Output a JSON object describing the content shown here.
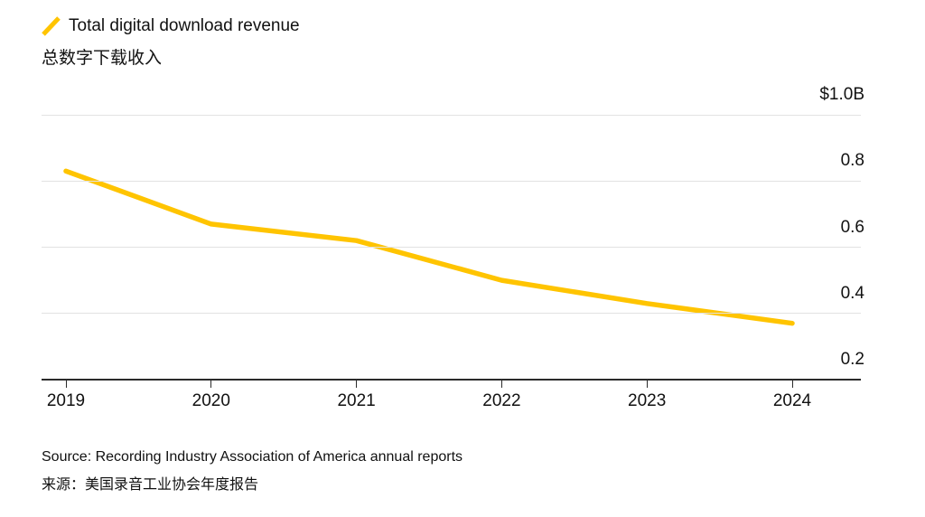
{
  "colors": {
    "line": "#FFC400",
    "gridline": "#E2E2E2",
    "axis": "#2B2B2B",
    "text": "#111111"
  },
  "legend": {
    "swatch_icon": "yellow-slash-line-swatch",
    "label": "Total digital download revenue",
    "subtitle_zh": "总数字下载收入"
  },
  "footer": {
    "source_en": "Source: Recording Industry Association of America annual reports",
    "source_zh": "来源：美国录音工业协会年度报告"
  },
  "chart_data": {
    "type": "line",
    "title": "Total digital download revenue",
    "title_zh": "总数字下载收入",
    "categories": [
      "2019",
      "2020",
      "2021",
      "2022",
      "2023",
      "2024"
    ],
    "series": [
      {
        "name": "Total digital download revenue",
        "values": [
          0.83,
          0.67,
          0.62,
          0.5,
          0.43,
          0.37
        ]
      }
    ],
    "unit": "$B",
    "ylim": [
      0.2,
      1.0
    ],
    "yticks": [
      {
        "value": 1.0,
        "label": "$1.0B"
      },
      {
        "value": 0.8,
        "label": "0.8"
      },
      {
        "value": 0.6,
        "label": "0.6"
      },
      {
        "value": 0.4,
        "label": "0.4"
      },
      {
        "value": 0.2,
        "label": "0.2"
      }
    ],
    "grid": "horizontal",
    "legend_position": "top-left"
  }
}
